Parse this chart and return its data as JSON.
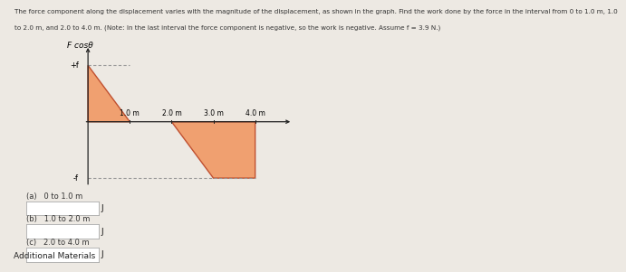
{
  "title_line1": "The force component along the displacement varies with the magnitude of the displacement, as shown in the graph. Find the work done by the force in the interval from 0 to 1.0 m, 1.0",
  "title_line2": "to 2.0 m, and 2.0 to 4.0 m. (Note: In the last interval the force component is negative, so the work is negative. Assume f = 3.9 N.)",
  "ylabel": "F cosθ",
  "f_value": 3.9,
  "xlim": [
    -0.15,
    5.2
  ],
  "ylim": [
    -4.8,
    5.5
  ],
  "x_tick_labels": [
    "1.0 m",
    "2.0 m",
    "3.0 m",
    "4.0 m"
  ],
  "x_tick_pos": [
    1.0,
    2.0,
    3.0,
    4.0
  ],
  "shape_color": "#f0a070",
  "shape_edge_color": "#c05030",
  "dashed_color": "#999999",
  "axis_color": "#222222",
  "bg_color": "#ede9e3",
  "question_labels": [
    "(a)   0 to 1.0 m",
    "(b)   1.0 to 2.0 m",
    "(c)   2.0 to 4.0 m"
  ],
  "additional_label": "Additional Materials",
  "fig_width": 6.17,
  "fig_height": 2.84
}
